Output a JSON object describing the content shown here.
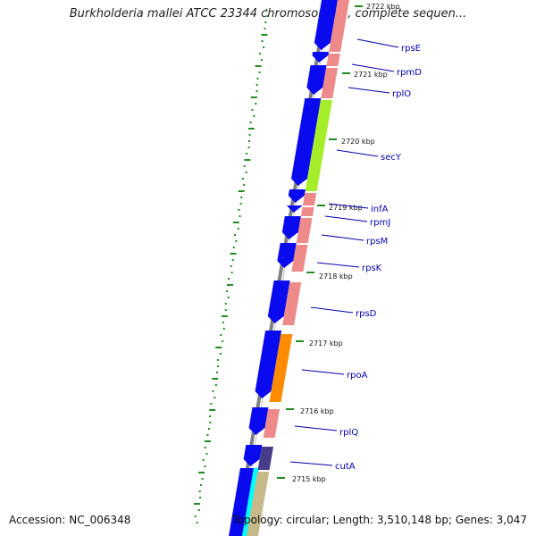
{
  "title": "Burkholderia mallei ATCC 23344 chromosome 1, complete sequen...",
  "footer": {
    "accession": "Accession: NC_006348",
    "summary": "Topology: circular; Length: 3,510,148 bp; Genes: 3,047"
  },
  "ticks": [
    {
      "label": "2722 kbp"
    },
    {
      "label": "2721 kbp"
    },
    {
      "label": "2720 kbp"
    },
    {
      "label": "2719 kbp"
    },
    {
      "label": "2718 kbp"
    },
    {
      "label": "2717 kbp"
    },
    {
      "label": "2716 kbp"
    },
    {
      "label": "2715 kbp"
    }
  ],
  "gene_labels": [
    "rpsE",
    "rpmD",
    "rplO",
    "secY",
    "infA",
    "rpmJ",
    "rpsM",
    "rpsK",
    "rpsD",
    "rpoA",
    "rplQ",
    "cutA"
  ],
  "colors": {
    "cds": "#0a0aee",
    "rpl_rps": "#ee8a8a",
    "secY": "#a6ee2a",
    "rpoA": "#ff8c00",
    "cutA": "#483d8b",
    "cyan": "#00ffff",
    "tan": "#c8b98a",
    "label": "#0000aa",
    "gc_dots": "#228b22",
    "backbone": "#808080"
  }
}
